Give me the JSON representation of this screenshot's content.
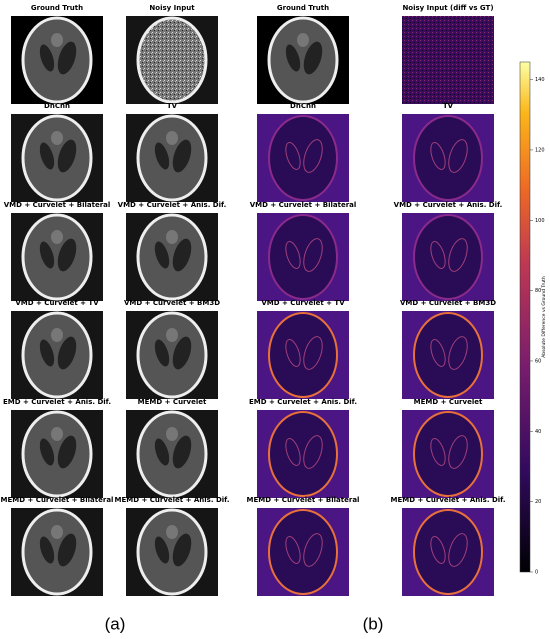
{
  "panels": [
    {
      "label": "(a)",
      "cells": [
        "Ground Truth",
        "Noisy Input",
        "DnCnn",
        "TV",
        "VMD + Curvelet + Bilateral",
        "VMD + Curvelet + Anis. Dif.",
        "VMD + Curvelet + TV",
        "VMD + Curvelet + BM3D",
        "EMD + Curvelet + Anis. Dif.",
        "MEMD + Curvelet",
        "MEMD + Curvelet + Bilateral",
        "MEMD + Curvelet + Anis. Dif."
      ]
    },
    {
      "label": "(b)",
      "cells": [
        "Ground Truth",
        "Noisy Input (diff vs GT)",
        "DnCnn",
        "TV",
        "VMD + Curvelet + Bilateral",
        "VMD + Curvelet + Anis. Dif.",
        "VMD + Curvelet + TV",
        "VMD + Curvelet + BM3D",
        "EMD + Curvelet + Anis. Dif.",
        "MEMD + Curvelet",
        "MEMD + Curvelet + Bilateral",
        "MEMD + Curvelet + Anis. Dif."
      ]
    }
  ],
  "colorbar": {
    "label": "Absolute Difference vs Ground Truth",
    "lim": [
      0,
      145
    ],
    "ticks": [
      0,
      20,
      40,
      60,
      80,
      100,
      120,
      140
    ]
  }
}
